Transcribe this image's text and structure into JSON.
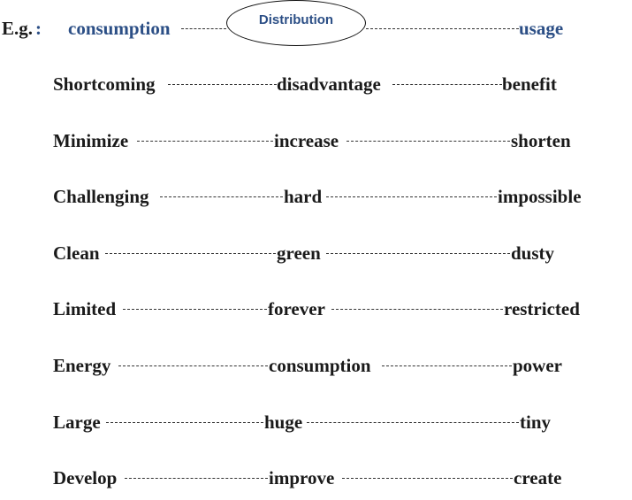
{
  "example": {
    "label": "E.g.",
    "colon": ":",
    "left_word": "consumption",
    "center_word": "Distribution",
    "right_word": "usage"
  },
  "rows": [
    {
      "left": "Shortcoming",
      "middle": "disadvantage",
      "right": "benefit"
    },
    {
      "left": "Minimize",
      "middle": "increase",
      "right": "shorten"
    },
    {
      "left": "Challenging",
      "middle": "hard",
      "right": "impossible"
    },
    {
      "left": "Clean",
      "middle": "green",
      "right": "dusty"
    },
    {
      "left": "Limited",
      "middle": "forever",
      "right": "restricted"
    },
    {
      "left": "Energy",
      "middle": "consumption",
      "right": "power"
    },
    {
      "left": "Large",
      "middle": "huge",
      "right": "tiny"
    },
    {
      "left": "Develop",
      "middle": "improve",
      "right": "create"
    }
  ]
}
